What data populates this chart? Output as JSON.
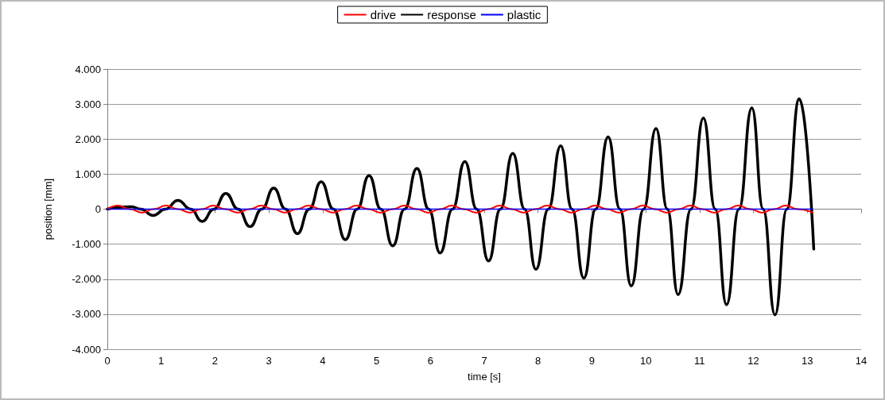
{
  "chart_data": {
    "type": "line",
    "xlabel": "time [s]",
    "ylabel": "position [mm]",
    "xlim": [
      0,
      14
    ],
    "xticks": [
      0,
      1,
      2,
      3,
      4,
      5,
      6,
      7,
      8,
      9,
      10,
      11,
      12,
      13,
      14
    ],
    "ylim": [
      -4000,
      4000
    ],
    "yticks": [
      {
        "value": -4000,
        "label": "-4.000"
      },
      {
        "value": -3000,
        "label": "-3.000"
      },
      {
        "value": -2000,
        "label": "-2.000"
      },
      {
        "value": -1000,
        "label": "-1.000"
      },
      0,
      {
        "value": 1000,
        "label": "1.000"
      },
      {
        "value": 2000,
        "label": "2.000"
      },
      {
        "value": 3000,
        "label": "3.000"
      },
      {
        "value": 4000,
        "label": "4.000"
      }
    ],
    "grid": "y",
    "legend": "top",
    "marker": "none",
    "line_style": "solid",
    "series": [
      {
        "name": "drive",
        "color": "#ff0000",
        "x": [
          0,
          0.2,
          0.42,
          0.64,
          0.86,
          1.09,
          1.31,
          1.53,
          1.75,
          1.97,
          2.19,
          2.42,
          2.64,
          2.86,
          3.08,
          3.3,
          3.52,
          3.74,
          3.97,
          4.19,
          4.41,
          4.63,
          4.85,
          5.07,
          5.3,
          5.52,
          5.74,
          5.96,
          6.18,
          6.4,
          6.62,
          6.85,
          7.07,
          7.29,
          7.51,
          7.73,
          7.95,
          8.17,
          8.4,
          8.62,
          8.84,
          9.06,
          9.28,
          9.5,
          9.72,
          9.95,
          10.17,
          10.39,
          10.61,
          10.83,
          11.05,
          11.27,
          11.5,
          11.72,
          11.94,
          12.16,
          12.38,
          12.6,
          12.82,
          13.1
        ],
        "values": [
          0,
          100,
          0,
          -100,
          0,
          100,
          0,
          -100,
          0,
          100,
          0,
          -100,
          0,
          100,
          0,
          -100,
          0,
          100,
          0,
          -100,
          0,
          100,
          0,
          -100,
          0,
          100,
          0,
          -100,
          0,
          100,
          0,
          -100,
          0,
          100,
          0,
          -100,
          0,
          100,
          0,
          -100,
          0,
          100,
          0,
          -100,
          0,
          100,
          0,
          -100,
          0,
          100,
          0,
          -100,
          0,
          100,
          0,
          -100,
          0,
          100,
          0,
          -100
        ]
      },
      {
        "name": "response",
        "color": "#000000",
        "x": [
          0,
          0.2,
          0.45,
          0.62,
          0.85,
          1.08,
          1.31,
          1.55,
          1.76,
          1.98,
          2.2,
          2.43,
          2.65,
          2.87,
          3.09,
          3.31,
          3.53,
          3.75,
          3.97,
          4.2,
          4.42,
          4.64,
          4.86,
          5.08,
          5.3,
          5.52,
          5.75,
          5.97,
          6.18,
          6.41,
          6.64,
          6.86,
          7.08,
          7.3,
          7.53,
          7.75,
          7.96,
          8.19,
          8.42,
          8.63,
          8.85,
          9.07,
          9.3,
          9.52,
          9.73,
          9.96,
          10.19,
          10.4,
          10.6,
          10.84,
          11.07,
          11.29,
          11.5,
          11.73,
          11.97,
          12.18,
          12.4,
          12.62,
          12.85,
          13.12
        ],
        "values": [
          0,
          50,
          70,
          0,
          -180,
          0,
          250,
          0,
          -350,
          0,
          450,
          0,
          -500,
          0,
          600,
          0,
          -700,
          0,
          780,
          0,
          -870,
          0,
          960,
          0,
          -1050,
          0,
          1160,
          0,
          -1250,
          0,
          1360,
          0,
          -1480,
          0,
          1590,
          0,
          -1720,
          0,
          1810,
          0,
          -1970,
          0,
          2060,
          0,
          -2190,
          0,
          2300,
          0,
          -2440,
          0,
          2600,
          0,
          -2730,
          0,
          2890,
          0,
          -3020,
          0,
          3150,
          -1140
        ]
      },
      {
        "name": "plastic",
        "color": "#0000ff",
        "x": [
          0,
          13.1
        ],
        "values": [
          0,
          0
        ]
      }
    ]
  }
}
